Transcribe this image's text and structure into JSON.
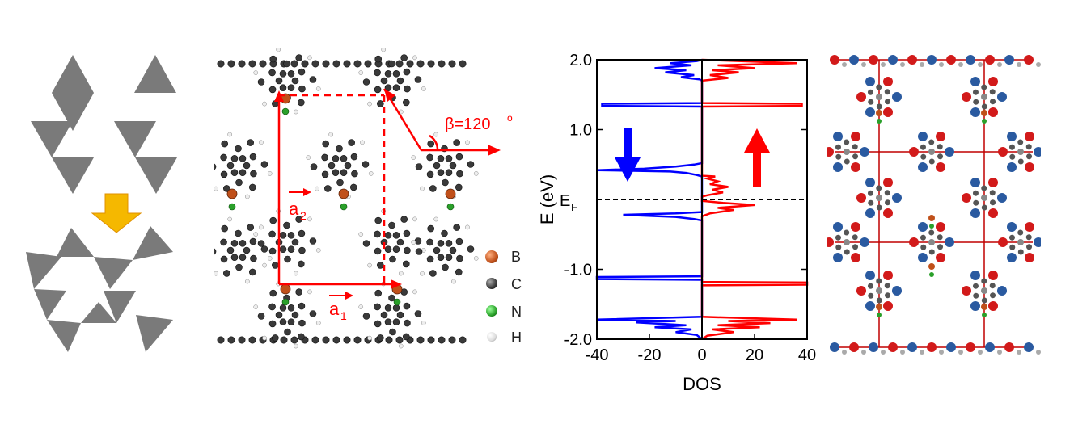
{
  "figure": {
    "legend": {
      "items": [
        {
          "symbol": "B",
          "color": "#c0501a"
        },
        {
          "symbol": "C",
          "color": "#3a3a3a"
        },
        {
          "symbol": "N",
          "color": "#2aa02a"
        },
        {
          "symbol": "H",
          "color": "#e6e6e6"
        }
      ]
    },
    "lattice": {
      "a1": "a",
      "a1_sub": "1",
      "a2": "a",
      "a2_sub": "2",
      "angle": "β=120",
      "angle_sup": "o"
    },
    "colors": {
      "spin_up": "#ff0000",
      "spin_down": "#0000ff",
      "triangle": "#7a7a7a",
      "arrow": "#f5b800",
      "bond": "#c00000"
    }
  },
  "chart_data": {
    "type": "line",
    "xlabel": "DOS",
    "ylabel": "E (eV)",
    "fermi_label": "E",
    "fermi_sub": "F",
    "xlim": [
      -40,
      40
    ],
    "ylim": [
      -2.0,
      2.0
    ],
    "xticks": [
      "-40",
      "-20",
      "0",
      "20",
      "40"
    ],
    "yticks": [
      "2.0",
      "1.0",
      "-1.0",
      "-2.0"
    ],
    "fermi_energy": 0.0,
    "series": [
      {
        "color": "#0000ff",
        "points": [
          [
            0,
            2.0
          ],
          [
            -2,
            1.98
          ],
          [
            -12,
            1.95
          ],
          [
            -4,
            1.92
          ],
          [
            -18,
            1.88
          ],
          [
            -6,
            1.85
          ],
          [
            -14,
            1.82
          ],
          [
            -3,
            1.78
          ],
          [
            -8,
            1.75
          ],
          [
            -1,
            1.72
          ],
          [
            0,
            1.7
          ],
          [
            0,
            1.38
          ],
          [
            -38,
            1.37
          ],
          [
            -38,
            1.34
          ],
          [
            0,
            1.33
          ],
          [
            0,
            0.52
          ],
          [
            -3,
            0.5
          ],
          [
            -10,
            0.47
          ],
          [
            -22,
            0.44
          ],
          [
            -40,
            0.42
          ],
          [
            -12,
            0.4
          ],
          [
            -6,
            0.38
          ],
          [
            -2,
            0.35
          ],
          [
            0,
            0.33
          ],
          [
            0,
            -0.18
          ],
          [
            -10,
            -0.2
          ],
          [
            -30,
            -0.22
          ],
          [
            -10,
            -0.25
          ],
          [
            -3,
            -0.28
          ],
          [
            0,
            -0.3
          ],
          [
            0,
            -1.1
          ],
          [
            -40,
            -1.11
          ],
          [
            -40,
            -1.14
          ],
          [
            0,
            -1.15
          ],
          [
            0,
            -1.68
          ],
          [
            -40,
            -1.72
          ],
          [
            -10,
            -1.74
          ],
          [
            -25,
            -1.76
          ],
          [
            -6,
            -1.8
          ],
          [
            -18,
            -1.83
          ],
          [
            -4,
            -1.86
          ],
          [
            -10,
            -1.9
          ],
          [
            -2,
            -1.94
          ],
          [
            0,
            -2.0
          ]
        ]
      },
      {
        "color": "#ff0000",
        "points": [
          [
            0,
            2.0
          ],
          [
            36,
            1.95
          ],
          [
            6,
            1.92
          ],
          [
            20,
            1.88
          ],
          [
            4,
            1.85
          ],
          [
            14,
            1.82
          ],
          [
            3,
            1.78
          ],
          [
            10,
            1.74
          ],
          [
            0,
            1.7
          ],
          [
            0,
            1.38
          ],
          [
            38,
            1.37
          ],
          [
            38,
            1.34
          ],
          [
            0,
            1.33
          ],
          [
            0,
            0.34
          ],
          [
            5,
            0.33
          ],
          [
            2,
            0.3
          ],
          [
            6,
            0.26
          ],
          [
            3,
            0.22
          ],
          [
            10,
            0.18
          ],
          [
            4,
            0.14
          ],
          [
            8,
            0.1
          ],
          [
            2,
            0.06
          ],
          [
            0,
            0.04
          ],
          [
            0,
            -0.02
          ],
          [
            8,
            -0.05
          ],
          [
            20,
            -0.08
          ],
          [
            6,
            -0.12
          ],
          [
            12,
            -0.15
          ],
          [
            3,
            -0.2
          ],
          [
            0,
            -0.24
          ],
          [
            0,
            -1.18
          ],
          [
            40,
            -1.19
          ],
          [
            40,
            -1.22
          ],
          [
            0,
            -1.23
          ],
          [
            0,
            -1.68
          ],
          [
            36,
            -1.72
          ],
          [
            10,
            -1.74
          ],
          [
            26,
            -1.77
          ],
          [
            6,
            -1.8
          ],
          [
            22,
            -1.83
          ],
          [
            4,
            -1.86
          ],
          [
            12,
            -1.9
          ],
          [
            2,
            -1.95
          ],
          [
            0,
            -2.0
          ]
        ]
      }
    ]
  }
}
